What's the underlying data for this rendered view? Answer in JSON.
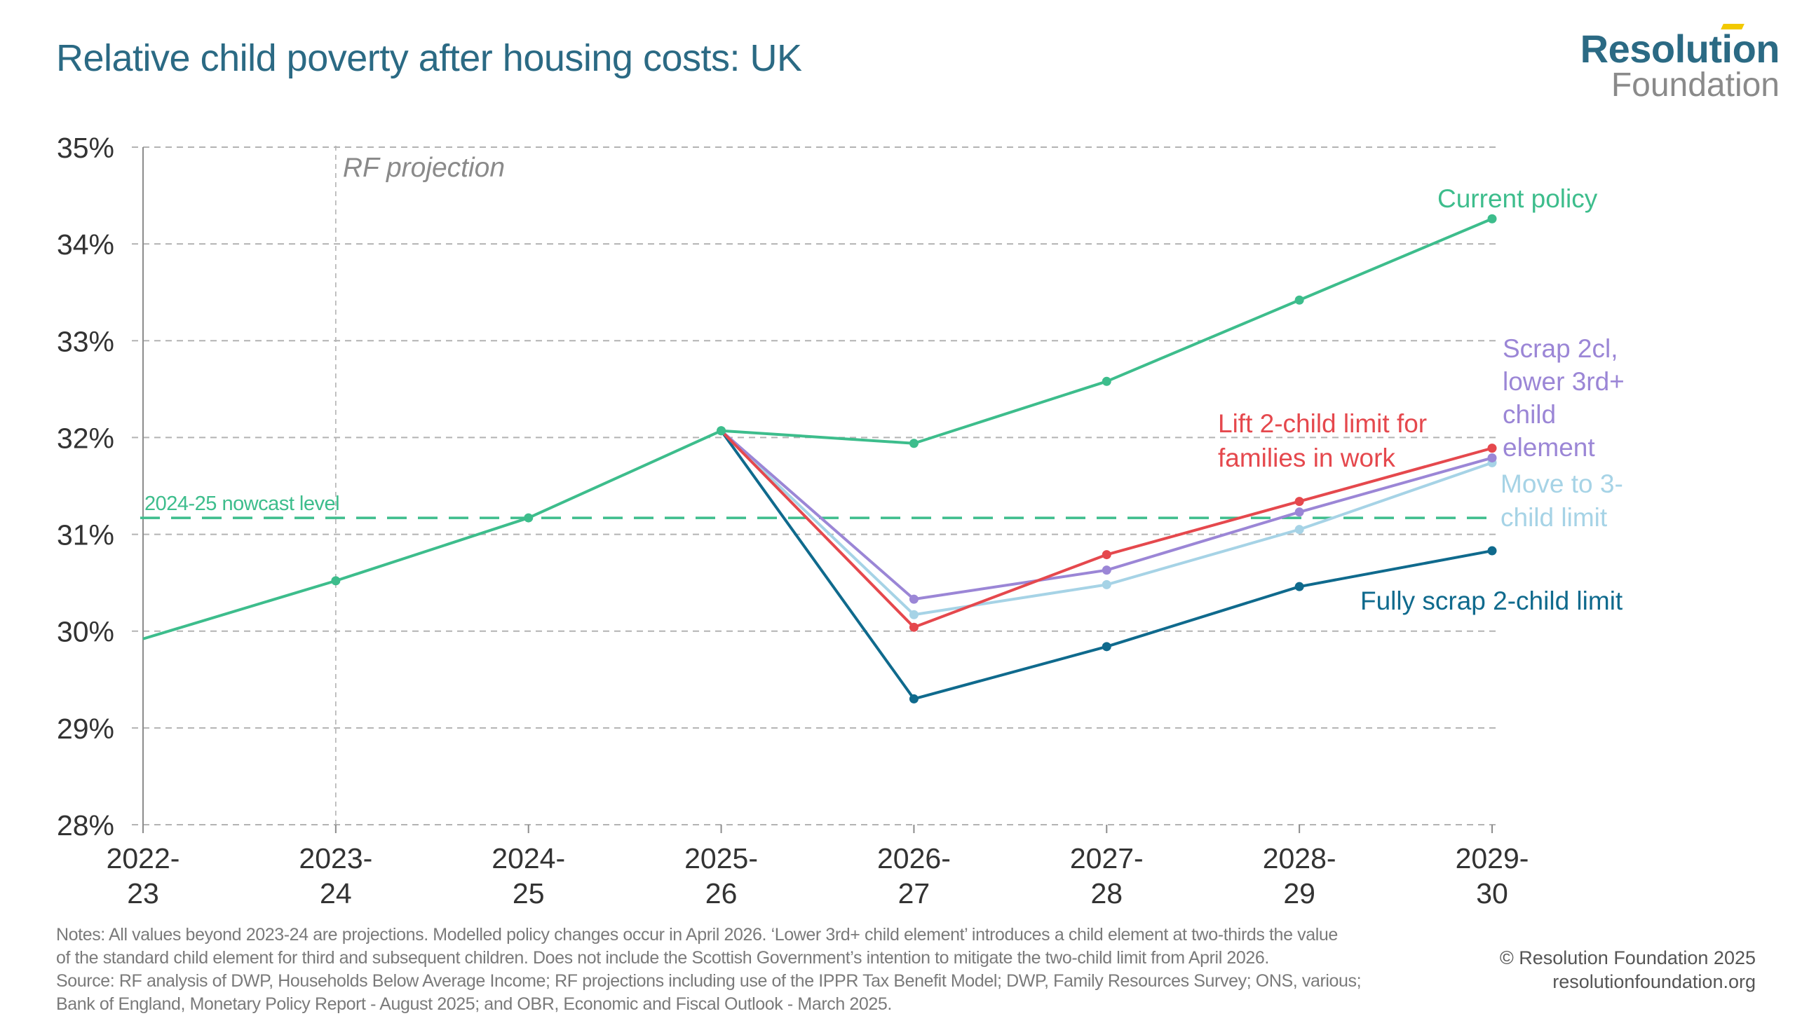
{
  "header": {
    "title": "Relative child poverty after housing costs: UK",
    "logo_line1": "Resolution",
    "logo_line2": "Foundation"
  },
  "colors": {
    "title": "#2b6a84",
    "grid": "#b3b3b3",
    "axis": "#8c8c8c",
    "current_policy": "#3dbd8c",
    "lift_2cl_in_work": "#e5484d",
    "scrap_2cl_lower_3rd": "#9b86d6",
    "move_to_3cl": "#a6d3e6",
    "fully_scrap_2cl": "#0f6a8d",
    "annotation_grey": "#8a8a8a"
  },
  "chart_data": {
    "type": "line",
    "title": "Relative child poverty after housing costs: UK",
    "xlabel": "",
    "ylabel": "",
    "categories": [
      [
        "2022-",
        "23"
      ],
      [
        "2023-",
        "24"
      ],
      [
        "2024-",
        "25"
      ],
      [
        "2025-",
        "26"
      ],
      [
        "2026-",
        "27"
      ],
      [
        "2027-",
        "28"
      ],
      [
        "2028-",
        "29"
      ],
      [
        "2029-",
        "30"
      ]
    ],
    "yticks": [
      28,
      29,
      30,
      31,
      32,
      33,
      34,
      35
    ],
    "ytick_labels": [
      "28%",
      "29%",
      "30%",
      "31%",
      "32%",
      "33%",
      "34%",
      "35%"
    ],
    "ylim": [
      28,
      35
    ],
    "grid": true,
    "legend": "direct-labels",
    "series": [
      {
        "key": "current_policy",
        "name": "Current policy",
        "label_lines": [
          "Current policy"
        ],
        "values": [
          29.92,
          30.52,
          31.17,
          32.07,
          31.94,
          32.58,
          33.42,
          34.26
        ],
        "markers_from": 1
      },
      {
        "key": "lift_2cl_in_work",
        "name": "Lift 2-child limit for families in work",
        "label_lines": [
          "Lift 2-child limit for",
          "families in work"
        ],
        "values": [
          null,
          null,
          null,
          32.07,
          30.04,
          30.79,
          31.34,
          31.89
        ],
        "markers_from": 4
      },
      {
        "key": "scrap_2cl_lower_3rd",
        "name": "Scrap 2cl, lower 3rd+ child element",
        "label_lines": [
          "Scrap 2cl,",
          "lower 3rd+",
          "child",
          "element"
        ],
        "values": [
          null,
          null,
          null,
          32.07,
          30.33,
          30.63,
          31.23,
          31.79
        ],
        "markers_from": 4
      },
      {
        "key": "move_to_3cl",
        "name": "Move to 3-child limit",
        "label_lines": [
          "Move to 3-",
          "child limit"
        ],
        "values": [
          null,
          null,
          null,
          32.07,
          30.17,
          30.48,
          31.05,
          31.74
        ],
        "markers_from": 4
      },
      {
        "key": "fully_scrap_2cl",
        "name": "Fully scrap 2-child limit",
        "label_lines": [
          "Fully scrap 2-child limit"
        ],
        "values": [
          null,
          null,
          null,
          32.07,
          29.3,
          29.84,
          30.46,
          30.83
        ],
        "markers_from": 4
      }
    ],
    "reference_line": {
      "label": "2024-25 nowcast level",
      "value": 31.17
    },
    "projection_marker": {
      "label": "RF projection",
      "at_category_index": 1
    }
  },
  "footer": {
    "notes_lines": [
      "Notes: All values beyond 2023-24 are projections. Modelled policy changes occur in April 2026. ‘Lower 3rd+ child element’ introduces a child element at two-thirds the value",
      "of the standard child element for third and subsequent children. Does not include the Scottish Government’s intention to mitigate the two-child limit from April 2026.",
      "Source: RF analysis of DWP, Households Below Average Income; RF projections including use of the IPPR Tax Benefit Model; DWP, Family Resources Survey; ONS, various;",
      "Bank of England, Monetary Policy Report - August 2025; and OBR, Economic and Fiscal Outlook - March 2025."
    ],
    "copyright": "© Resolution Foundation 2025",
    "website": "resolutionfoundation.org"
  }
}
